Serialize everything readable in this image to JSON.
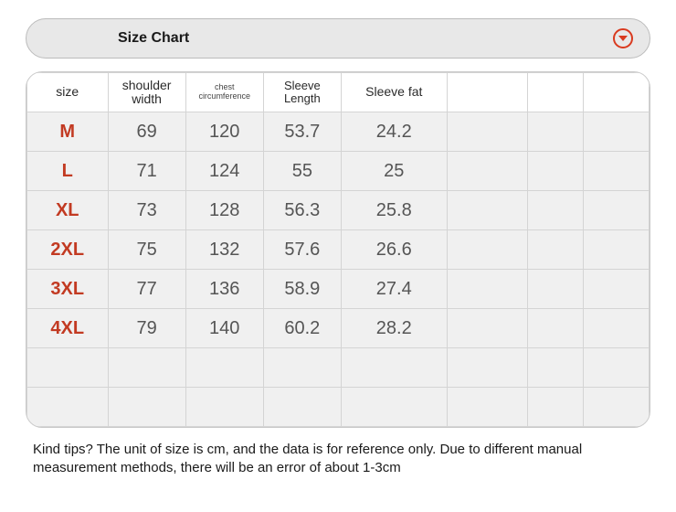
{
  "header": {
    "title": "Size Chart"
  },
  "table": {
    "columns": [
      "size",
      "shoulder width",
      "chest circumference",
      "Sleeve Length",
      "Sleeve fat",
      "",
      "",
      ""
    ],
    "header_styles": [
      "",
      "",
      "small",
      "mid",
      "",
      "",
      "",
      ""
    ],
    "rows": [
      [
        "M",
        "69",
        "120",
        "53.7",
        "24.2",
        "",
        "",
        ""
      ],
      [
        "L",
        "71",
        "124",
        "55",
        "25",
        "",
        "",
        ""
      ],
      [
        "XL",
        "73",
        "128",
        "56.3",
        "25.8",
        "",
        "",
        ""
      ],
      [
        "2XL",
        "75",
        "132",
        "57.6",
        "26.6",
        "",
        "",
        ""
      ],
      [
        "3XL",
        "77",
        "136",
        "58.9",
        "27.4",
        "",
        "",
        ""
      ],
      [
        "4XL",
        "79",
        "140",
        "60.2",
        "28.2",
        "",
        "",
        ""
      ]
    ],
    "empty_rows": 2,
    "colors": {
      "size_text": "#c23a22",
      "value_text": "#555555",
      "header_bg": "#ffffff",
      "body_bg": "#f0f0f0",
      "border": "#d4d4d4",
      "accent": "#d93a1f"
    },
    "font_sizes": {
      "header": 14,
      "header_small": 9,
      "header_mid": 13,
      "cell": 20
    }
  },
  "tips": "Kind tips? The unit of size is cm, and the data is for reference only. Due to different manual measurement methods, there will be an error of about 1-3cm"
}
